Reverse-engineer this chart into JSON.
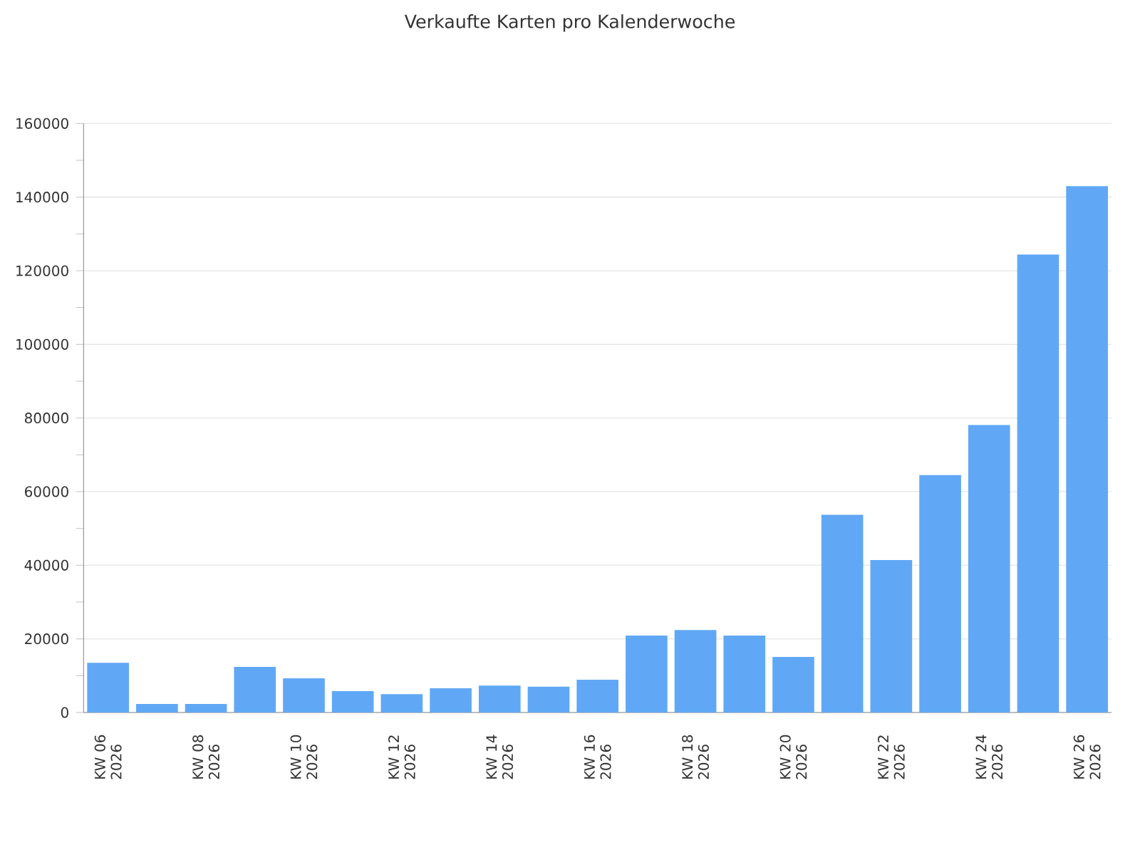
{
  "chart_data": {
    "type": "bar",
    "title": "Verkaufte Karten pro Kalenderwoche",
    "categories": [
      "KW 06 2026",
      null,
      "KW 08 2026",
      null,
      "KW 10 2026",
      null,
      "KW 12 2026",
      null,
      "KW 14 2026",
      null,
      "KW 16 2026",
      null,
      "KW 18 2026",
      null,
      "KW 20 2026",
      null,
      "KW 22 2026",
      null,
      "KW 24 2026",
      null,
      "KW 26 2026"
    ],
    "values": [
      13500,
      2300,
      2300,
      12400,
      9300,
      5800,
      5000,
      6600,
      7300,
      7000,
      8900,
      20900,
      22400,
      20900,
      15100,
      53700,
      41400,
      64500,
      78100,
      124400,
      143000
    ],
    "color": "#60a8f5",
    "ylim": [
      0,
      160000
    ],
    "yticks": [
      0,
      20000,
      40000,
      60000,
      80000,
      100000,
      120000,
      140000,
      160000
    ],
    "grid": "y"
  }
}
